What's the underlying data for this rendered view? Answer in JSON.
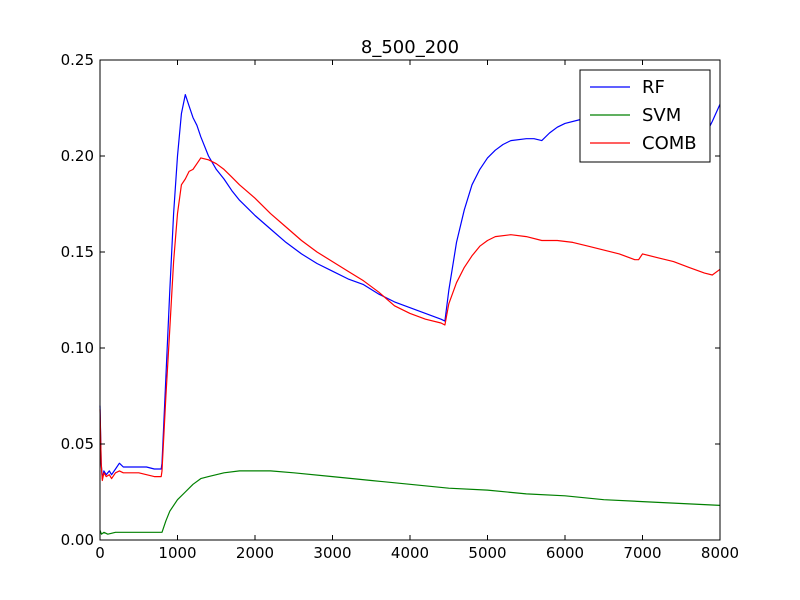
{
  "chart_data": {
    "type": "line",
    "title": "8_500_200",
    "xlabel": "",
    "ylabel": "",
    "xlim": [
      0,
      8000
    ],
    "ylim": [
      0,
      0.25
    ],
    "xticks": [
      0,
      1000,
      2000,
      3000,
      4000,
      5000,
      6000,
      7000,
      8000
    ],
    "xtick_labels": [
      "0",
      "1000",
      "2000",
      "3000",
      "4000",
      "5000",
      "6000",
      "7000",
      "8000"
    ],
    "yticks": [
      0,
      0.05,
      0.1,
      0.15,
      0.2,
      0.25
    ],
    "ytick_labels": [
      "0.00",
      "0.05",
      "0.10",
      "0.15",
      "0.20",
      "0.25"
    ],
    "grid": false,
    "legend_position": "top-right",
    "series": [
      {
        "name": "RF",
        "color": "#0000ff",
        "points": [
          [
            0,
            0.07
          ],
          [
            15,
            0.04
          ],
          [
            30,
            0.032
          ],
          [
            50,
            0.036
          ],
          [
            80,
            0.034
          ],
          [
            120,
            0.036
          ],
          [
            150,
            0.034
          ],
          [
            200,
            0.037
          ],
          [
            250,
            0.04
          ],
          [
            300,
            0.038
          ],
          [
            400,
            0.038
          ],
          [
            500,
            0.038
          ],
          [
            600,
            0.038
          ],
          [
            700,
            0.037
          ],
          [
            790,
            0.037
          ],
          [
            800,
            0.04
          ],
          [
            850,
            0.085
          ],
          [
            900,
            0.13
          ],
          [
            950,
            0.17
          ],
          [
            1000,
            0.2
          ],
          [
            1050,
            0.222
          ],
          [
            1100,
            0.232
          ],
          [
            1150,
            0.226
          ],
          [
            1200,
            0.22
          ],
          [
            1250,
            0.216
          ],
          [
            1300,
            0.21
          ],
          [
            1400,
            0.2
          ],
          [
            1500,
            0.193
          ],
          [
            1600,
            0.188
          ],
          [
            1700,
            0.182
          ],
          [
            1800,
            0.177
          ],
          [
            2000,
            0.169
          ],
          [
            2200,
            0.162
          ],
          [
            2400,
            0.155
          ],
          [
            2600,
            0.149
          ],
          [
            2800,
            0.144
          ],
          [
            3000,
            0.14
          ],
          [
            3200,
            0.136
          ],
          [
            3400,
            0.133
          ],
          [
            3600,
            0.128
          ],
          [
            3800,
            0.124
          ],
          [
            4000,
            0.121
          ],
          [
            4200,
            0.118
          ],
          [
            4400,
            0.115
          ],
          [
            4450,
            0.114
          ],
          [
            4500,
            0.13
          ],
          [
            4600,
            0.155
          ],
          [
            4700,
            0.172
          ],
          [
            4800,
            0.185
          ],
          [
            4900,
            0.193
          ],
          [
            5000,
            0.199
          ],
          [
            5100,
            0.203
          ],
          [
            5200,
            0.206
          ],
          [
            5300,
            0.208
          ],
          [
            5500,
            0.209
          ],
          [
            5600,
            0.209
          ],
          [
            5700,
            0.208
          ],
          [
            5800,
            0.212
          ],
          [
            5900,
            0.215
          ],
          [
            6000,
            0.217
          ],
          [
            6200,
            0.219
          ],
          [
            6400,
            0.22
          ],
          [
            6600,
            0.221
          ],
          [
            6800,
            0.221
          ],
          [
            7000,
            0.221
          ],
          [
            7200,
            0.219
          ],
          [
            7400,
            0.217
          ],
          [
            7600,
            0.214
          ],
          [
            7800,
            0.21
          ],
          [
            7900,
            0.218
          ],
          [
            8000,
            0.227
          ]
        ]
      },
      {
        "name": "SVM",
        "color": "#008000",
        "points": [
          [
            0,
            0.005
          ],
          [
            20,
            0.003
          ],
          [
            50,
            0.004
          ],
          [
            100,
            0.003
          ],
          [
            200,
            0.004
          ],
          [
            300,
            0.004
          ],
          [
            400,
            0.004
          ],
          [
            500,
            0.004
          ],
          [
            600,
            0.004
          ],
          [
            700,
            0.004
          ],
          [
            800,
            0.004
          ],
          [
            850,
            0.01
          ],
          [
            900,
            0.015
          ],
          [
            1000,
            0.021
          ],
          [
            1100,
            0.025
          ],
          [
            1200,
            0.029
          ],
          [
            1300,
            0.032
          ],
          [
            1400,
            0.033
          ],
          [
            1500,
            0.034
          ],
          [
            1600,
            0.035
          ],
          [
            1800,
            0.036
          ],
          [
            2000,
            0.036
          ],
          [
            2200,
            0.036
          ],
          [
            2500,
            0.035
          ],
          [
            3000,
            0.033
          ],
          [
            3500,
            0.031
          ],
          [
            4000,
            0.029
          ],
          [
            4500,
            0.027
          ],
          [
            5000,
            0.026
          ],
          [
            5500,
            0.024
          ],
          [
            6000,
            0.023
          ],
          [
            6500,
            0.021
          ],
          [
            7000,
            0.02
          ],
          [
            7500,
            0.019
          ],
          [
            8000,
            0.018
          ]
        ]
      },
      {
        "name": "COMB",
        "color": "#ff0000",
        "points": [
          [
            0,
            0.068
          ],
          [
            15,
            0.04
          ],
          [
            30,
            0.031
          ],
          [
            50,
            0.035
          ],
          [
            80,
            0.033
          ],
          [
            120,
            0.034
          ],
          [
            150,
            0.032
          ],
          [
            200,
            0.035
          ],
          [
            250,
            0.036
          ],
          [
            300,
            0.035
          ],
          [
            400,
            0.035
          ],
          [
            500,
            0.035
          ],
          [
            600,
            0.034
          ],
          [
            700,
            0.033
          ],
          [
            790,
            0.033
          ],
          [
            800,
            0.036
          ],
          [
            850,
            0.075
          ],
          [
            900,
            0.11
          ],
          [
            950,
            0.145
          ],
          [
            1000,
            0.17
          ],
          [
            1050,
            0.185
          ],
          [
            1100,
            0.188
          ],
          [
            1150,
            0.192
          ],
          [
            1200,
            0.193
          ],
          [
            1250,
            0.196
          ],
          [
            1300,
            0.199
          ],
          [
            1400,
            0.198
          ],
          [
            1500,
            0.196
          ],
          [
            1600,
            0.193
          ],
          [
            1700,
            0.189
          ],
          [
            1800,
            0.185
          ],
          [
            2000,
            0.178
          ],
          [
            2200,
            0.17
          ],
          [
            2400,
            0.163
          ],
          [
            2600,
            0.156
          ],
          [
            2800,
            0.15
          ],
          [
            3000,
            0.145
          ],
          [
            3200,
            0.14
          ],
          [
            3400,
            0.135
          ],
          [
            3600,
            0.129
          ],
          [
            3800,
            0.122
          ],
          [
            4000,
            0.118
          ],
          [
            4200,
            0.115
          ],
          [
            4400,
            0.113
          ],
          [
            4450,
            0.112
          ],
          [
            4500,
            0.123
          ],
          [
            4600,
            0.134
          ],
          [
            4700,
            0.142
          ],
          [
            4800,
            0.148
          ],
          [
            4900,
            0.153
          ],
          [
            5000,
            0.156
          ],
          [
            5100,
            0.158
          ],
          [
            5300,
            0.159
          ],
          [
            5500,
            0.158
          ],
          [
            5700,
            0.156
          ],
          [
            5900,
            0.156
          ],
          [
            6100,
            0.155
          ],
          [
            6300,
            0.153
          ],
          [
            6500,
            0.151
          ],
          [
            6700,
            0.149
          ],
          [
            6900,
            0.146
          ],
          [
            6950,
            0.146
          ],
          [
            7000,
            0.149
          ],
          [
            7200,
            0.147
          ],
          [
            7400,
            0.145
          ],
          [
            7600,
            0.142
          ],
          [
            7800,
            0.139
          ],
          [
            7900,
            0.138
          ],
          [
            8000,
            0.141
          ]
        ]
      }
    ]
  }
}
